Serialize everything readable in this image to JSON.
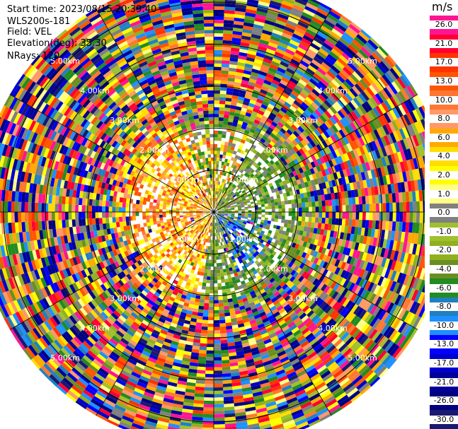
{
  "header": {
    "start_time": "Start time: 2023/08/15 20:39:40",
    "instrument": "WLS200s-181",
    "field": "Field: VEL",
    "elevation": "Elevation(deg): 35.30",
    "nrays": "NRays: 120"
  },
  "colorbar": {
    "unit": "m/s",
    "levels": [
      {
        "label": "26.0",
        "color": "#ff1493"
      },
      {
        "label": "21.0",
        "color": "#ff0033"
      },
      {
        "label": "17.0",
        "color": "#ff3300"
      },
      {
        "label": "13.0",
        "color": "#ff5500"
      },
      {
        "label": "10.0",
        "color": "#ff7733"
      },
      {
        "label": "8.0",
        "color": "#ff9966"
      },
      {
        "label": "6.0",
        "color": "#ffaa00"
      },
      {
        "label": "4.0",
        "color": "#ffdd00"
      },
      {
        "label": "2.0",
        "color": "#ffff00"
      },
      {
        "label": "1.0",
        "color": "#ffff88"
      },
      {
        "label": "0.0",
        "color": "#808080"
      },
      {
        "label": "-1.0",
        "color": "#a0c030"
      },
      {
        "label": "-2.0",
        "color": "#90b020"
      },
      {
        "label": "-4.0",
        "color": "#6b8e23"
      },
      {
        "label": "-6.0",
        "color": "#228b22"
      },
      {
        "label": "-8.0",
        "color": "#2080c0"
      },
      {
        "label": "-10.0",
        "color": "#1e90ff"
      },
      {
        "label": "-13.0",
        "color": "#0000ff"
      },
      {
        "label": "-17.0",
        "color": "#0000cd"
      },
      {
        "label": "-21.0",
        "color": "#000099"
      },
      {
        "label": "-26.0",
        "color": "#000080"
      },
      {
        "label": "-30.0",
        "color": "#191970"
      }
    ]
  },
  "chart_data": {
    "type": "heatmap",
    "projection": "polar PPI",
    "field": "VEL",
    "nrays": 120,
    "range_rings_km": [
      1.0,
      2.0,
      3.0,
      4.0,
      5.0
    ],
    "ring_labels": [
      "1.00km",
      "2.00km",
      "3.00km",
      "4.00km",
      "5.00km"
    ],
    "max_range_km": 5.6,
    "inner_region_km": 2.0,
    "inner_pattern": "coherent: positive (yellow/orange) west and north-west, negative (green/grey) east, blue near south-east",
    "outer_pattern": "noisy speckle across full color scale",
    "colors": {
      "ring": "#000000",
      "spoke": "#000000",
      "background": "#ffffff",
      "range_label": "#ffffff"
    }
  }
}
